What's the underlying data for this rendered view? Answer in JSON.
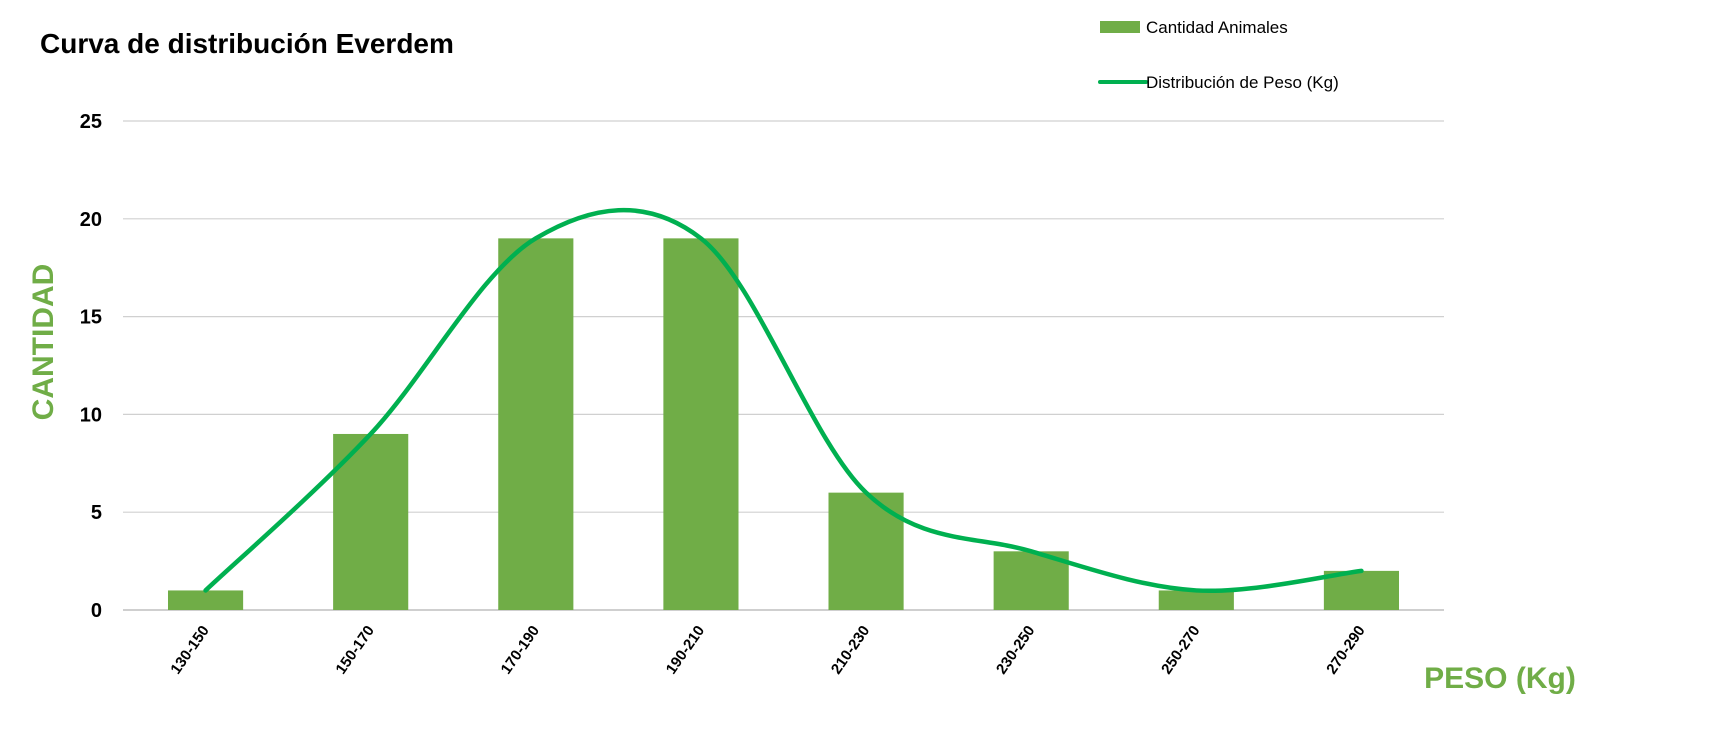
{
  "chart_data": {
    "type": "bar",
    "title": "Curva de distribución Everdem",
    "xlabel": "PESO (Kg)",
    "ylabel": "CANTIDAD",
    "categories": [
      "130-150",
      "150-170",
      "170-190",
      "190-210",
      "210-230",
      "230-250",
      "250-270",
      "270-290"
    ],
    "series": [
      {
        "name": "Cantidad Animales",
        "type": "bar",
        "color": "#70ad47",
        "values": [
          1,
          9,
          19,
          19,
          6,
          3,
          1,
          2
        ]
      },
      {
        "name": "Distribución de Peso (Kg)",
        "type": "line",
        "smooth": true,
        "color": "#00b050",
        "values": [
          1,
          9,
          19,
          19,
          6,
          3,
          1,
          2
        ]
      }
    ],
    "ylim": [
      0,
      25
    ],
    "yticks": [
      0,
      5,
      10,
      15,
      20,
      25
    ],
    "grid": true,
    "legend": "top-right",
    "axis_title_color": "#70ad47"
  }
}
